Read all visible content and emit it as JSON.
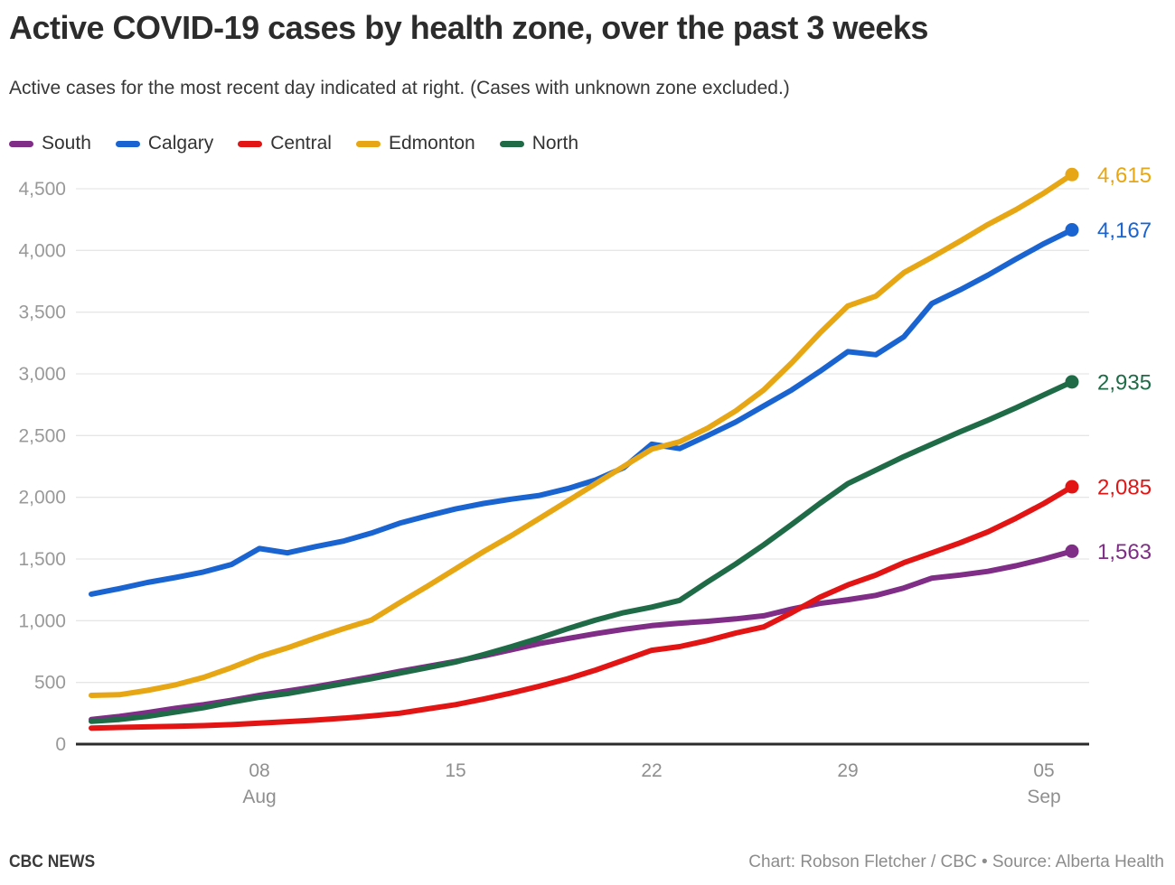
{
  "header": {
    "title": "Active COVID-19 cases by health zone, over the past 3 weeks",
    "subtitle": "Active cases for the most recent day indicated at right. (Cases with unknown zone excluded.)"
  },
  "legend": [
    {
      "label": "South",
      "color": "#7f2d87"
    },
    {
      "label": "Calgary",
      "color": "#1a64d2"
    },
    {
      "label": "Central",
      "color": "#e31414"
    },
    {
      "label": "Edmonton",
      "color": "#e7a614"
    },
    {
      "label": "North",
      "color": "#1f6b47"
    }
  ],
  "footer": {
    "brand": "CBC NEWS",
    "credit": "Chart: Robson Fletcher / CBC • Source: Alberta Health"
  },
  "chart_data": {
    "type": "line",
    "title": "Active COVID-19 cases by health zone, over the past 3 weeks",
    "grid": true,
    "legend_position": "top",
    "ylim": [
      0,
      4700
    ],
    "x": [
      "Aug 2",
      "Aug 3",
      "Aug 4",
      "Aug 5",
      "Aug 6",
      "Aug 7",
      "Aug 8",
      "Aug 9",
      "Aug 10",
      "Aug 11",
      "Aug 12",
      "Aug 13",
      "Aug 14",
      "Aug 15",
      "Aug 16",
      "Aug 17",
      "Aug 18",
      "Aug 19",
      "Aug 20",
      "Aug 21",
      "Aug 22",
      "Aug 23",
      "Aug 24",
      "Aug 25",
      "Aug 26",
      "Aug 27",
      "Aug 28",
      "Aug 29",
      "Aug 30",
      "Aug 31",
      "Sep 1",
      "Sep 2",
      "Sep 3",
      "Sep 4",
      "Sep 5",
      "Sep 6"
    ],
    "x_ticks": [
      {
        "index": 6,
        "label": "08",
        "month": "Aug"
      },
      {
        "index": 13,
        "label": "15",
        "month": ""
      },
      {
        "index": 20,
        "label": "22",
        "month": ""
      },
      {
        "index": 27,
        "label": "29",
        "month": ""
      },
      {
        "index": 34,
        "label": "05",
        "month": "Sep"
      }
    ],
    "y_ticks": [
      {
        "value": 0,
        "label": "0"
      },
      {
        "value": 500,
        "label": "500"
      },
      {
        "value": 1000,
        "label": "1,000"
      },
      {
        "value": 1500,
        "label": "1,500"
      },
      {
        "value": 2000,
        "label": "2,000"
      },
      {
        "value": 2500,
        "label": "2,500"
      },
      {
        "value": 3000,
        "label": "3,000"
      },
      {
        "value": 3500,
        "label": "3,500"
      },
      {
        "value": 4000,
        "label": "4,000"
      },
      {
        "value": 4500,
        "label": "4,500"
      }
    ],
    "series": [
      {
        "name": "South",
        "color": "#7f2d87",
        "end_label": "1,563",
        "values": [
          200,
          225,
          255,
          290,
          320,
          355,
          395,
          430,
          465,
          505,
          545,
          590,
          630,
          670,
          715,
          765,
          815,
          855,
          895,
          930,
          960,
          980,
          995,
          1015,
          1040,
          1095,
          1140,
          1170,
          1205,
          1265,
          1345,
          1370,
          1400,
          1445,
          1500,
          1563
        ]
      },
      {
        "name": "Calgary",
        "color": "#1a64d2",
        "end_label": "4,167",
        "values": [
          1215,
          1260,
          1310,
          1350,
          1395,
          1455,
          1585,
          1550,
          1600,
          1645,
          1710,
          1790,
          1850,
          1905,
          1950,
          1985,
          2015,
          2070,
          2140,
          2240,
          2430,
          2395,
          2500,
          2610,
          2740,
          2870,
          3020,
          3180,
          3155,
          3300,
          3570,
          3680,
          3800,
          3930,
          4055,
          4167
        ]
      },
      {
        "name": "Central",
        "color": "#e31414",
        "end_label": "2,085",
        "values": [
          130,
          135,
          140,
          145,
          150,
          158,
          170,
          182,
          195,
          210,
          228,
          250,
          285,
          320,
          365,
          415,
          470,
          530,
          600,
          680,
          760,
          790,
          840,
          900,
          950,
          1065,
          1190,
          1290,
          1370,
          1470,
          1550,
          1630,
          1720,
          1830,
          1950,
          2085
        ]
      },
      {
        "name": "Edmonton",
        "color": "#e7a614",
        "end_label": "4,615",
        "values": [
          395,
          400,
          435,
          480,
          540,
          620,
          710,
          780,
          860,
          935,
          1005,
          1145,
          1280,
          1420,
          1560,
          1690,
          1830,
          1970,
          2110,
          2250,
          2390,
          2450,
          2560,
          2700,
          2870,
          3090,
          3330,
          3550,
          3630,
          3820,
          3945,
          4075,
          4210,
          4330,
          4465,
          4615
        ]
      },
      {
        "name": "North",
        "color": "#1f6b47",
        "end_label": "2,935",
        "values": [
          185,
          200,
          225,
          260,
          295,
          340,
          380,
          410,
          450,
          490,
          530,
          575,
          620,
          665,
          725,
          790,
          860,
          935,
          1005,
          1065,
          1110,
          1165,
          1315,
          1460,
          1615,
          1780,
          1950,
          2110,
          2220,
          2330,
          2430,
          2530,
          2625,
          2725,
          2830,
          2935
        ]
      }
    ]
  }
}
